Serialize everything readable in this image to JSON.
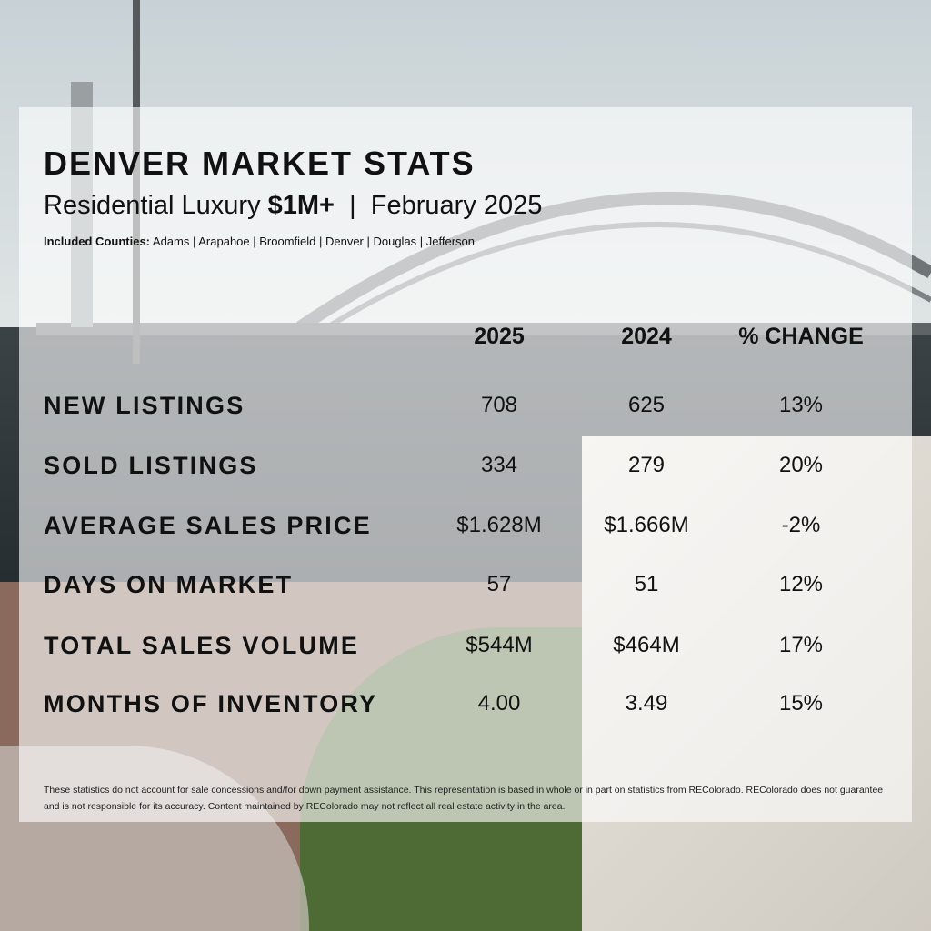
{
  "header": {
    "title": "DENVER MARKET STATS",
    "subtitle_prefix": "Residential Luxury",
    "subtitle_bold": "$1M+",
    "subtitle_separator": "|",
    "subtitle_period": "February 2025",
    "counties_label": "Included Counties:",
    "counties": "Adams | Arapahoe | Broomfield | Denver | Douglas | Jefferson"
  },
  "columns": {
    "current": "2025",
    "previous": "2024",
    "change": "% CHANGE"
  },
  "rows": [
    {
      "label": "NEW LISTINGS",
      "current": "708",
      "previous": "625",
      "change": "13%"
    },
    {
      "label": "SOLD LISTINGS",
      "current": "334",
      "previous": "279",
      "change": "20%"
    },
    {
      "label": "AVERAGE SALES PRICE",
      "current": "$1.628M",
      "previous": "$1.666M",
      "change": "-2%"
    },
    {
      "label": "DAYS ON MARKET",
      "current": "57",
      "previous": "51",
      "change": "12%"
    },
    {
      "label": "TOTAL SALES VOLUME",
      "current": "$544M",
      "previous": "$464M",
      "change": "17%"
    },
    {
      "label": "MONTHS OF INVENTORY",
      "current": "4.00",
      "previous": "3.49",
      "change": "15%"
    }
  ],
  "disclaimer": "These statistics do not account for sale concessions and/for down payment assistance. This representation is based in whole or in part on statistics from REColorado. REColorado does not guarantee and is not responsible for its accuracy. Content maintained by REColorado may not reflect all real estate activity in the area.",
  "colors": {
    "text": "#111111",
    "card_overlay": "#ffffff"
  }
}
